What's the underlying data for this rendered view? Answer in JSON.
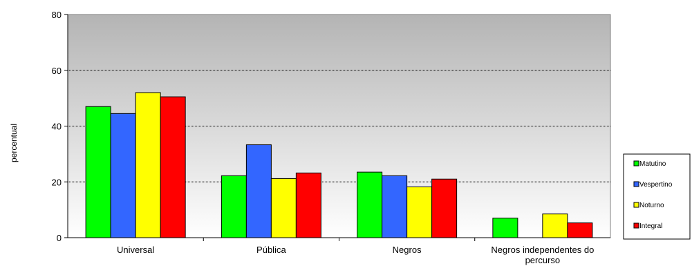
{
  "chart_data": {
    "type": "bar",
    "ylabel": "percentual",
    "ylim": [
      0,
      80
    ],
    "yticks": [
      0,
      20,
      40,
      60,
      80
    ],
    "grid": true,
    "legend_position": "right",
    "categories": [
      "Universal",
      "Pública",
      "Negros",
      "Negros independentes do percurso"
    ],
    "series": [
      {
        "name": "Matutino",
        "color": "#00ff00",
        "values": [
          47,
          22.2,
          23.5,
          7
        ]
      },
      {
        "name": "Vespertino",
        "color": "#3366ff",
        "values": [
          44.5,
          33.3,
          22.2,
          null
        ]
      },
      {
        "name": "Noturno",
        "color": "#ffff00",
        "values": [
          52,
          21.2,
          18.2,
          8.5
        ]
      },
      {
        "name": "Integral",
        "color": "#ff0000",
        "values": [
          50.5,
          23.2,
          21,
          5.3
        ]
      }
    ]
  }
}
